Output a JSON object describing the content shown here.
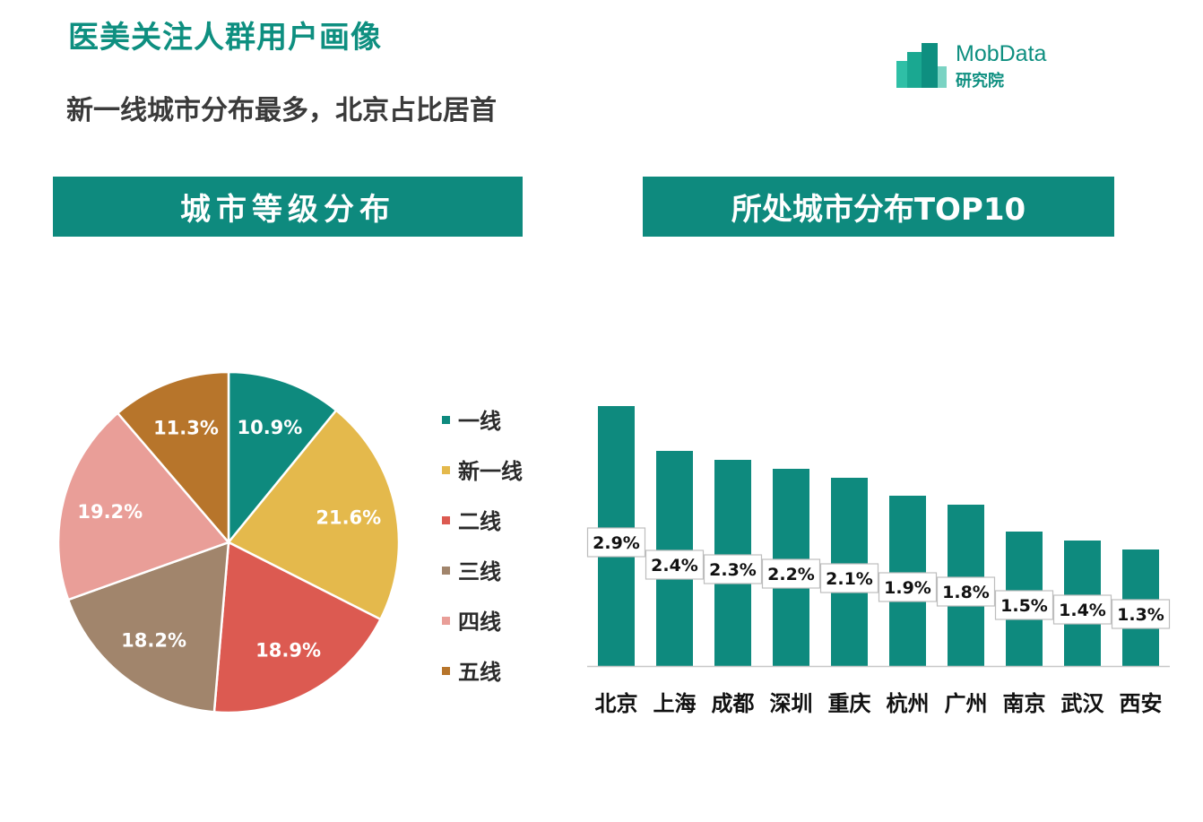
{
  "header": {
    "title": "医美关注人群用户画像",
    "subtitle": "新一线城市分布最多，北京占比居首"
  },
  "logo": {
    "name": "MobData",
    "sub": "研究院"
  },
  "colors": {
    "accent": "#0e8a7e",
    "tier1": "#0e8a7e",
    "new_tier1": "#e4b94c",
    "tier2": "#dc5a51",
    "tier3": "#a1856c",
    "tier4": "#e99e98",
    "tier5": "#b7752b"
  },
  "chart_data": [
    {
      "type": "pie",
      "title": "城市等级分布",
      "slices": [
        {
          "label": "一线",
          "value": 10.9,
          "display": "10.9%",
          "color": "#0e8a7e"
        },
        {
          "label": "新一线",
          "value": 21.6,
          "display": "21.6%",
          "color": "#e4b94c"
        },
        {
          "label": "二线",
          "value": 18.9,
          "display": "18.9%",
          "color": "#dc5a51"
        },
        {
          "label": "三线",
          "value": 18.2,
          "display": "18.2%",
          "color": "#a1856c"
        },
        {
          "label": "四线",
          "value": 19.2,
          "display": "19.2%",
          "color": "#e99e98"
        },
        {
          "label": "五线",
          "value": 11.3,
          "display": "11.3%",
          "color": "#b7752b"
        }
      ],
      "legend": "right"
    },
    {
      "type": "bar",
      "title": "所处城市分布TOP10",
      "categories": [
        "北京",
        "上海",
        "成都",
        "深圳",
        "重庆",
        "杭州",
        "广州",
        "南京",
        "武汉",
        "西安"
      ],
      "values": [
        2.9,
        2.4,
        2.3,
        2.2,
        2.1,
        1.9,
        1.8,
        1.5,
        1.4,
        1.3
      ],
      "labels": [
        "2.9%",
        "2.4%",
        "2.3%",
        "2.2%",
        "2.1%",
        "1.9%",
        "1.8%",
        "1.5%",
        "1.4%",
        "1.3%"
      ],
      "color": "#0e8a7e",
      "ylim": [
        0,
        2.9
      ]
    }
  ]
}
